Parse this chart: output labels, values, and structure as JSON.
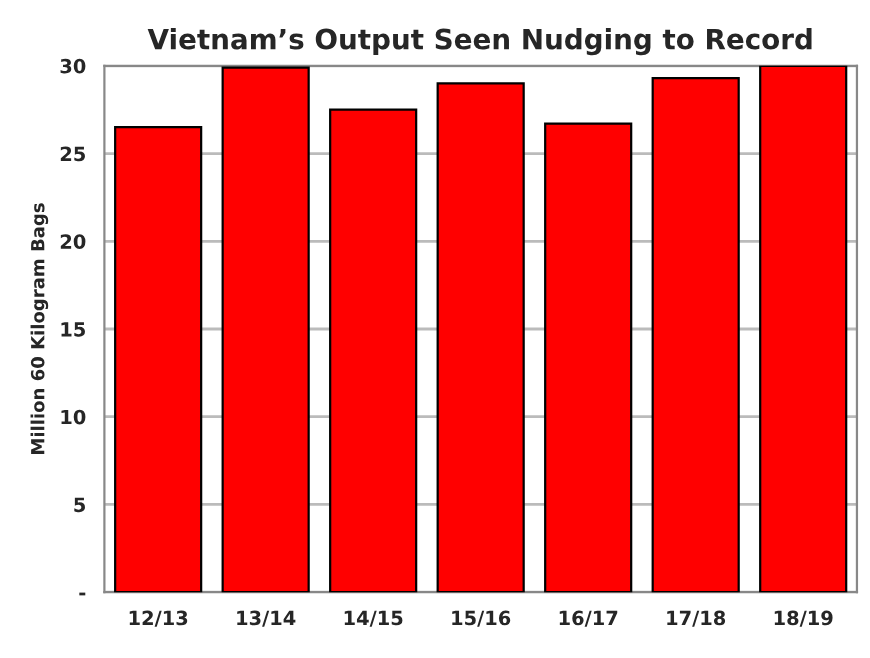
{
  "chart_data": {
    "type": "bar",
    "title": "Vietnam’s Output Seen Nudging to Record",
    "ylabel": "Million 60 Kilogram Bags",
    "categories": [
      "12/13",
      "13/14",
      "14/15",
      "15/16",
      "16/17",
      "17/18",
      "18/19"
    ],
    "values": [
      26.5,
      29.9,
      27.5,
      29.0,
      26.7,
      29.3,
      30.0
    ],
    "color": "#ff0000",
    "ylim": [
      0,
      30
    ],
    "yticks": [
      {
        "value": 0,
        "label": "-"
      },
      5,
      10,
      15,
      20,
      25,
      30
    ],
    "grid": "y"
  }
}
